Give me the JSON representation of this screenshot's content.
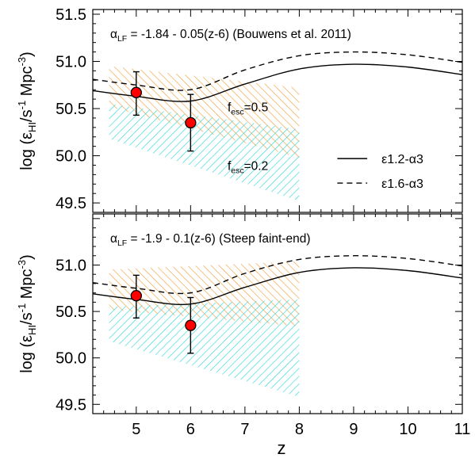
{
  "figure": {
    "xlabel": "z",
    "ylabel": {
      "prefix": "log (ε",
      "sub1": "HI",
      "mid": "/s",
      "sup1": "-1",
      "mid2": " Mpc",
      "sup2": "-3",
      "suffix": ")"
    },
    "legend": {
      "solid": "ε1.2-α3",
      "dashed": "ε1.6-α3"
    },
    "colors": {
      "orange": "#f0a040",
      "cyan": "#30d8d8",
      "point_fill": "#ff0000",
      "line": "#000000"
    }
  },
  "chart_data": [
    {
      "type": "line",
      "title": {
        "prefix": "α",
        "sub": "LF",
        "rest": " = -1.84 - 0.05(z-6) (Bouwens et al. 2011)"
      },
      "xlim": [
        4.2,
        11
      ],
      "ylim": [
        49.4,
        51.55
      ],
      "xticks": [
        5,
        6,
        7,
        8,
        9,
        10,
        11
      ],
      "yticks": [
        49.5,
        50.0,
        50.5,
        51.0,
        51.5
      ],
      "ytick_labels": [
        "49.5",
        "50.0",
        "50.5",
        "51.0",
        "51.5"
      ],
      "bands": [
        {
          "color": "orange",
          "x": [
            4.5,
            8
          ],
          "upper": [
            50.95,
            50.72
          ],
          "lower": [
            50.52,
            49.98
          ],
          "label": {
            "prefix": "f",
            "sub": "esc",
            "rest": "=0.5"
          }
        },
        {
          "color": "cyan",
          "x": [
            4.5,
            8
          ],
          "upper": [
            50.55,
            50.28
          ],
          "lower": [
            50.18,
            49.52
          ],
          "label": {
            "prefix": "f",
            "sub": "esc",
            "rest": "=0.2"
          }
        }
      ],
      "series": [
        {
          "name": "ε1.2-α3",
          "style": "solid",
          "x": [
            4.2,
            5,
            6,
            7,
            8,
            9,
            10,
            11
          ],
          "y": [
            50.69,
            50.63,
            50.58,
            50.76,
            50.92,
            50.97,
            50.94,
            50.86
          ]
        },
        {
          "name": "ε1.6-α3",
          "style": "dashed",
          "x": [
            4.2,
            5,
            6,
            7,
            8,
            9,
            10,
            11
          ],
          "y": [
            50.81,
            50.75,
            50.7,
            50.91,
            51.06,
            51.1,
            51.07,
            50.99
          ]
        }
      ],
      "points": [
        {
          "x": 5,
          "y": 50.67,
          "yerr_low": 50.43,
          "yerr_high": 50.89
        },
        {
          "x": 6,
          "y": 50.35,
          "yerr_low": 50.05,
          "yerr_high": 50.65
        }
      ],
      "legend_position": "lower-right"
    },
    {
      "type": "line",
      "title": {
        "prefix": "α",
        "sub": "LF",
        "rest": " = -1.9 - 0.1(z-6) (Steep faint-end)"
      },
      "xlim": [
        4.2,
        11
      ],
      "ylim": [
        49.4,
        51.55
      ],
      "xticks": [
        5,
        6,
        7,
        8,
        9,
        10,
        11
      ],
      "yticks": [
        49.5,
        50.0,
        50.5,
        51.0
      ],
      "ytick_labels": [
        "49.5",
        "50.0",
        "50.5",
        "51.0"
      ],
      "bands": [
        {
          "color": "orange",
          "x": [
            4.5,
            8
          ],
          "upper": [
            50.95,
            51.04
          ],
          "lower": [
            50.52,
            50.34
          ],
          "label": null
        },
        {
          "color": "cyan",
          "x": [
            4.5,
            8
          ],
          "upper": [
            50.55,
            50.63
          ],
          "lower": [
            50.18,
            49.58
          ],
          "label": null
        }
      ],
      "series": [
        {
          "name": "ε1.2-α3",
          "style": "solid",
          "x": [
            4.2,
            5,
            6,
            7,
            8,
            9,
            10,
            11
          ],
          "y": [
            50.69,
            50.63,
            50.58,
            50.76,
            50.92,
            50.97,
            50.94,
            50.86
          ]
        },
        {
          "name": "ε1.6-α3",
          "style": "dashed",
          "x": [
            4.2,
            5,
            6,
            7,
            8,
            9,
            10,
            11
          ],
          "y": [
            50.81,
            50.75,
            50.7,
            50.91,
            51.06,
            51.1,
            51.07,
            50.99
          ]
        }
      ],
      "points": [
        {
          "x": 5,
          "y": 50.67,
          "yerr_low": 50.43,
          "yerr_high": 50.89
        },
        {
          "x": 6,
          "y": 50.35,
          "yerr_low": 50.05,
          "yerr_high": 50.65
        }
      ],
      "legend_position": "none"
    }
  ]
}
